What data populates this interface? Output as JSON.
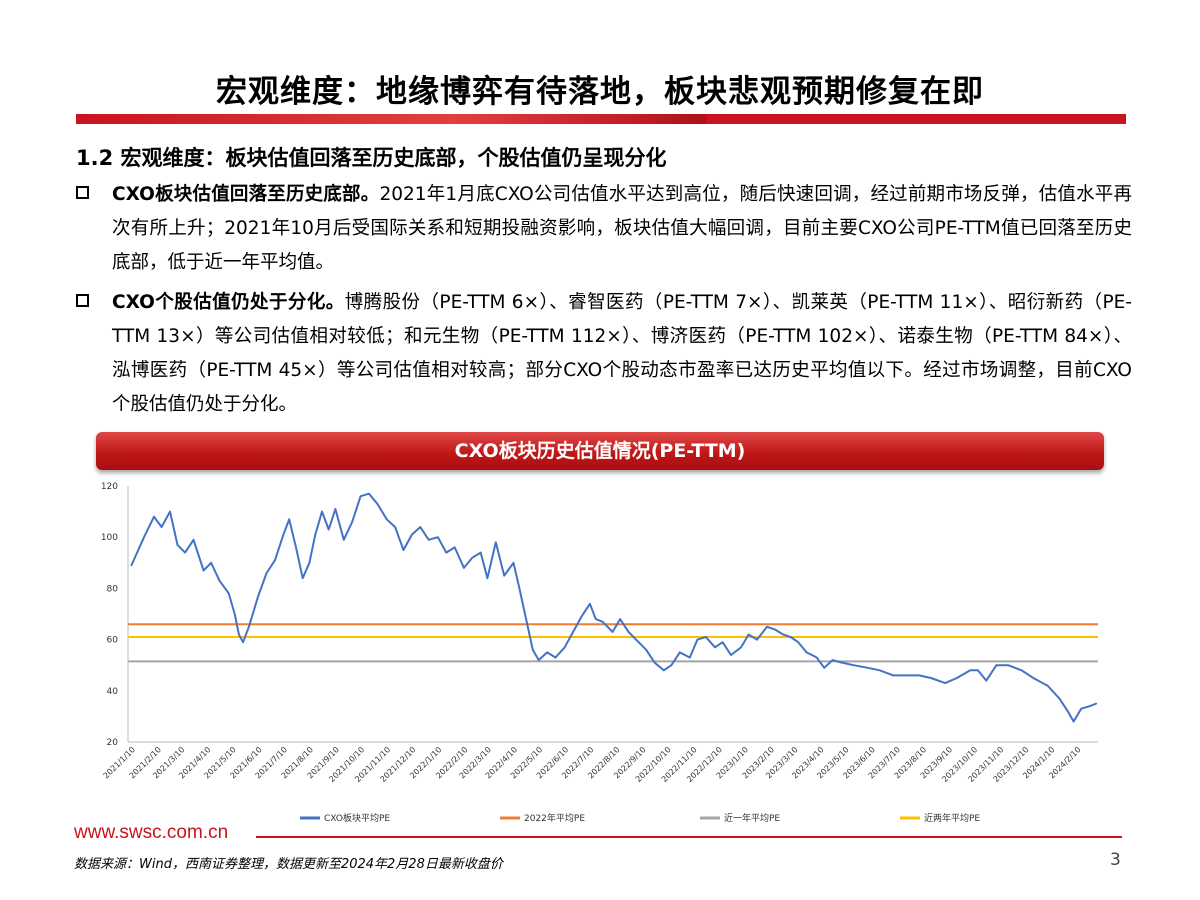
{
  "header": {
    "title": "宏观维度：地缘博弈有待落地，板块悲观预期修复在即",
    "subtitle": "1.2 宏观维度：板块估值回落至历史底部，个股估值仍呈现分化"
  },
  "bullets": [
    {
      "bold": "CXO板块估值回落至历史底部。",
      "text": "2021年1月底CXO公司估值水平达到高位，随后快速回调，经过前期市场反弹，估值水平再次有所上升；2021年10月后受国际关系和短期投融资影响，板块估值大幅回调，目前主要CXO公司PE-TTM值已回落至历史底部，低于近一年平均值。"
    },
    {
      "bold": "CXO个股估值仍处于分化。",
      "text": "博腾股份（PE-TTM 6×）、睿智医药（PE-TTM 7×）、凯莱英（PE-TTM 11×）、昭衍新药（PE-TTM 13×）等公司估值相对较低；和元生物（PE-TTM 112×）、博济医药（PE-TTM 102×）、诺泰生物（PE-TTM 84×）、泓博医药（PE-TTM 45×）等公司估值相对较高；部分CXO个股动态市盈率已达历史平均值以下。经过市场调整，目前CXO个股估值仍处于分化。"
    }
  ],
  "chart_header": "CXO板块历史估值情况(PE-TTM)",
  "chart_data": {
    "type": "line",
    "title": "CXO板块历史估值情况(PE-TTM)",
    "ylim": [
      20,
      120
    ],
    "y_ticks": [
      20,
      40,
      60,
      80,
      100,
      120
    ],
    "x_ticks": [
      "2021/1/10",
      "2021/2/10",
      "2021/3/10",
      "2021/4/10",
      "2021/5/10",
      "2021/6/10",
      "2021/7/10",
      "2021/8/10",
      "2021/9/10",
      "2021/10/10",
      "2021/11/10",
      "2021/12/10",
      "2022/1/10",
      "2022/2/10",
      "2022/3/10",
      "2022/4/10",
      "2022/5/10",
      "2022/6/10",
      "2022/7/10",
      "2022/8/10",
      "2022/9/10",
      "2022/10/10",
      "2022/11/10",
      "2022/12/10",
      "2023/1/10",
      "2023/2/10",
      "2023/3/10",
      "2023/4/10",
      "2023/5/10",
      "2023/6/10",
      "2023/7/10",
      "2023/8/10",
      "2023/9/10",
      "2023/10/10",
      "2023/11/10",
      "2023/12/10",
      "2024/1/10",
      "2024/2/10"
    ],
    "legend_position": "bottom",
    "grid": false,
    "series": [
      {
        "name": "CXO板块平均PE",
        "color": "#4472c4",
        "points": [
          [
            "2021/1/5",
            89
          ],
          [
            "2021/1/20",
            100
          ],
          [
            "2021/2/1",
            108
          ],
          [
            "2021/2/10",
            104
          ],
          [
            "2021/2/20",
            110
          ],
          [
            "2021/3/1",
            97
          ],
          [
            "2021/3/10",
            94
          ],
          [
            "2021/3/20",
            99
          ],
          [
            "2021/4/1",
            87
          ],
          [
            "2021/4/10",
            90
          ],
          [
            "2021/4/20",
            83
          ],
          [
            "2021/5/1",
            78
          ],
          [
            "2021/5/8",
            70
          ],
          [
            "2021/5/13",
            62
          ],
          [
            "2021/5/18",
            59
          ],
          [
            "2021/5/25",
            65
          ],
          [
            "2021/6/5",
            77
          ],
          [
            "2021/6/15",
            86
          ],
          [
            "2021/6/25",
            91
          ],
          [
            "2021/7/5",
            101
          ],
          [
            "2021/7/12",
            107
          ],
          [
            "2021/7/20",
            96
          ],
          [
            "2021/7/28",
            84
          ],
          [
            "2021/8/5",
            90
          ],
          [
            "2021/8/12",
            101
          ],
          [
            "2021/8/20",
            110
          ],
          [
            "2021/8/28",
            103
          ],
          [
            "2021/9/5",
            111
          ],
          [
            "2021/9/15",
            99
          ],
          [
            "2021/9/25",
            106
          ],
          [
            "2021/10/5",
            116
          ],
          [
            "2021/10/15",
            117
          ],
          [
            "2021/10/25",
            113
          ],
          [
            "2021/11/5",
            107
          ],
          [
            "2021/11/15",
            104
          ],
          [
            "2021/11/25",
            95
          ],
          [
            "2021/12/5",
            101
          ],
          [
            "2021/12/15",
            104
          ],
          [
            "2021/12/25",
            99
          ],
          [
            "2022/1/5",
            100
          ],
          [
            "2022/1/15",
            94
          ],
          [
            "2022/1/25",
            96
          ],
          [
            "2022/2/5",
            88
          ],
          [
            "2022/2/15",
            92
          ],
          [
            "2022/2/25",
            94
          ],
          [
            "2022/3/5",
            84
          ],
          [
            "2022/3/15",
            98
          ],
          [
            "2022/3/25",
            85
          ],
          [
            "2022/4/5",
            90
          ],
          [
            "2022/4/12",
            80
          ],
          [
            "2022/4/20",
            68
          ],
          [
            "2022/4/28",
            56
          ],
          [
            "2022/5/5",
            52
          ],
          [
            "2022/5/15",
            55
          ],
          [
            "2022/5/25",
            53
          ],
          [
            "2022/6/5",
            57
          ],
          [
            "2022/6/15",
            63
          ],
          [
            "2022/6/25",
            69
          ],
          [
            "2022/7/5",
            74
          ],
          [
            "2022/7/12",
            68
          ],
          [
            "2022/7/20",
            67
          ],
          [
            "2022/8/1",
            63
          ],
          [
            "2022/8/10",
            68
          ],
          [
            "2022/8/20",
            63
          ],
          [
            "2022/9/1",
            59
          ],
          [
            "2022/9/10",
            56
          ],
          [
            "2022/9/20",
            51
          ],
          [
            "2022/10/1",
            48
          ],
          [
            "2022/10/10",
            50
          ],
          [
            "2022/10/20",
            55
          ],
          [
            "2022/11/1",
            53
          ],
          [
            "2022/11/10",
            60
          ],
          [
            "2022/11/20",
            61
          ],
          [
            "2022/12/1",
            57
          ],
          [
            "2022/12/10",
            59
          ],
          [
            "2022/12/20",
            54
          ],
          [
            "2023/1/1",
            57
          ],
          [
            "2023/1/10",
            62
          ],
          [
            "2023/1/20",
            60
          ],
          [
            "2023/2/1",
            65
          ],
          [
            "2023/2/10",
            64
          ],
          [
            "2023/2/20",
            62
          ],
          [
            "2023/3/1",
            61
          ],
          [
            "2023/3/10",
            59
          ],
          [
            "2023/3/20",
            55
          ],
          [
            "2023/4/1",
            53
          ],
          [
            "2023/4/10",
            49
          ],
          [
            "2023/4/20",
            52
          ],
          [
            "2023/5/1",
            51
          ],
          [
            "2023/5/15",
            50
          ],
          [
            "2023/6/1",
            49
          ],
          [
            "2023/6/15",
            48
          ],
          [
            "2023/7/1",
            46
          ],
          [
            "2023/7/15",
            46
          ],
          [
            "2023/8/1",
            46
          ],
          [
            "2023/8/15",
            45
          ],
          [
            "2023/9/1",
            43
          ],
          [
            "2023/9/15",
            45
          ],
          [
            "2023/10/1",
            48
          ],
          [
            "2023/10/10",
            48
          ],
          [
            "2023/10/20",
            44
          ],
          [
            "2023/11/1",
            50
          ],
          [
            "2023/11/15",
            50
          ],
          [
            "2023/12/1",
            48
          ],
          [
            "2023/12/15",
            45
          ],
          [
            "2024/1/1",
            42
          ],
          [
            "2024/1/15",
            37
          ],
          [
            "2024/1/25",
            32
          ],
          [
            "2024/2/1",
            28
          ],
          [
            "2024/2/10",
            33
          ],
          [
            "2024/2/20",
            34
          ],
          [
            "2024/2/28",
            35
          ]
        ]
      },
      {
        "name": "2022年平均PE",
        "color": "#ed7d31",
        "value": 66
      },
      {
        "name": "近一年平均PE",
        "color": "#a5a5a5",
        "value": 51.5
      },
      {
        "name": "近两年平均PE",
        "color": "#ffc000",
        "value": 61
      }
    ]
  },
  "footer": {
    "website": "www.swsc.com.cn",
    "source": "数据来源：Wind，西南证券整理，数据更新至2024年2月28日最新收盘价",
    "page_number": "3"
  }
}
